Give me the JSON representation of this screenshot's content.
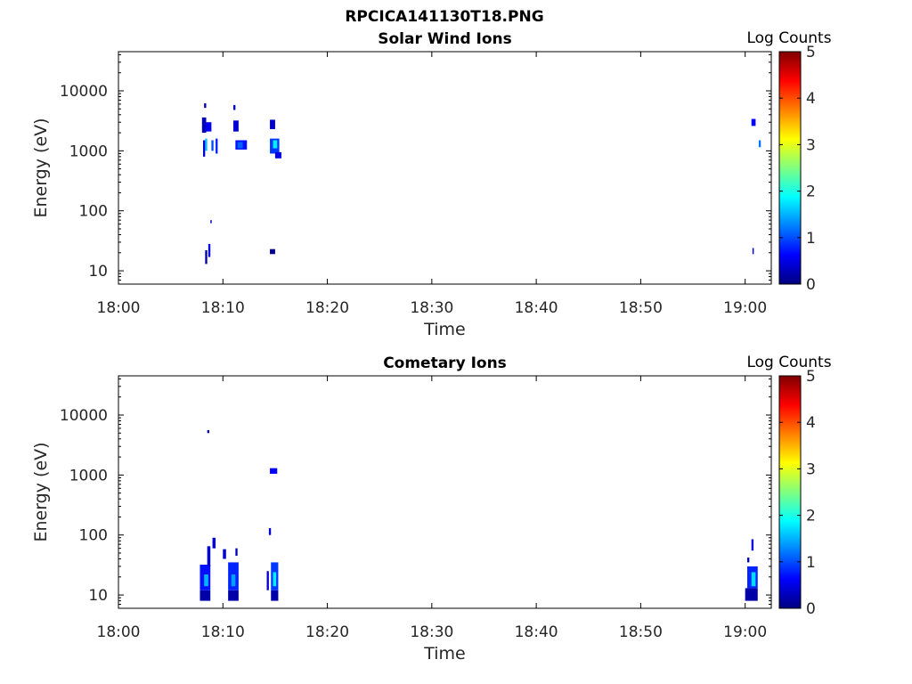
{
  "figure": {
    "title": "RPCICA141130T18.PNG"
  },
  "colorscale": [
    "#00007f",
    "#0000ff",
    "#0080ff",
    "#00ffff",
    "#80ff80",
    "#ffff00",
    "#ff8000",
    "#ff0000",
    "#7f0000"
  ],
  "chart_data": [
    {
      "type": "heatmap",
      "title": "Solar Wind Ions",
      "xlabel": "Time",
      "ylabel": "Energy (eV)",
      "colorbar_label": "Log Counts",
      "colorbar_range": [
        0,
        5
      ],
      "colorbar_ticks": [
        "0",
        "1",
        "2",
        "3",
        "4",
        "5"
      ],
      "x_range_min": [
        0,
        62.5
      ],
      "x_ticks": [
        {
          "t": 0,
          "label": "18:00"
        },
        {
          "t": 10,
          "label": "18:10"
        },
        {
          "t": 20,
          "label": "18:20"
        },
        {
          "t": 30,
          "label": "18:30"
        },
        {
          "t": 40,
          "label": "18:40"
        },
        {
          "t": 50,
          "label": "18:50"
        },
        {
          "t": 60,
          "label": "19:00"
        }
      ],
      "y_scale": "log",
      "y_range": [
        6,
        45000
      ],
      "y_ticks": [
        {
          "v": 10,
          "label": "10"
        },
        {
          "v": 100,
          "label": "100"
        },
        {
          "v": 1000,
          "label": "1000"
        },
        {
          "v": 10000,
          "label": "10000"
        }
      ],
      "cells": [
        [
          8.0,
          8.4,
          2000,
          3600,
          0.3
        ],
        [
          8.4,
          8.9,
          2100,
          3000,
          0.6
        ],
        [
          8.2,
          8.4,
          5200,
          6200,
          0.2
        ],
        [
          8.3,
          8.5,
          1000,
          1600,
          1.6
        ],
        [
          8.1,
          8.3,
          800,
          1500,
          0.4
        ],
        [
          8.9,
          9.1,
          1000,
          1500,
          1.0
        ],
        [
          9.3,
          9.5,
          900,
          1600,
          0.8
        ],
        [
          8.3,
          8.5,
          13,
          22,
          0.2
        ],
        [
          8.6,
          8.8,
          17,
          28,
          0.5
        ],
        [
          8.8,
          8.9,
          62,
          70,
          0.4
        ],
        [
          11.0,
          11.2,
          4800,
          5800,
          0.3
        ],
        [
          11.0,
          11.5,
          2100,
          3200,
          0.4
        ],
        [
          11.2,
          12.3,
          1050,
          1500,
          0.7
        ],
        [
          11.4,
          11.9,
          1100,
          1400,
          1.1
        ],
        [
          14.5,
          15.0,
          2300,
          3300,
          0.4
        ],
        [
          14.5,
          15.4,
          900,
          1600,
          0.9
        ],
        [
          14.8,
          15.2,
          1100,
          1500,
          1.8
        ],
        [
          15.0,
          15.6,
          750,
          950,
          0.5
        ],
        [
          14.5,
          15.0,
          19,
          23,
          0.1
        ],
        [
          60.6,
          61.0,
          2600,
          3400,
          0.6
        ],
        [
          61.3,
          61.5,
          1150,
          1500,
          1.2
        ],
        [
          60.7,
          60.8,
          19,
          24,
          0.5
        ]
      ]
    },
    {
      "type": "heatmap",
      "title": "Cometary Ions",
      "xlabel": "Time",
      "ylabel": "Energy (eV)",
      "colorbar_label": "Log Counts",
      "colorbar_range": [
        0,
        5
      ],
      "colorbar_ticks": [
        "0",
        "1",
        "2",
        "3",
        "4",
        "5"
      ],
      "x_range_min": [
        0,
        62.5
      ],
      "x_ticks": [
        {
          "t": 0,
          "label": "18:00"
        },
        {
          "t": 10,
          "label": "18:10"
        },
        {
          "t": 20,
          "label": "18:20"
        },
        {
          "t": 30,
          "label": "18:30"
        },
        {
          "t": 40,
          "label": "18:40"
        },
        {
          "t": 50,
          "label": "18:50"
        },
        {
          "t": 60,
          "label": "19:00"
        }
      ],
      "y_scale": "log",
      "y_range": [
        6,
        45000
      ],
      "y_ticks": [
        {
          "v": 10,
          "label": "10"
        },
        {
          "v": 100,
          "label": "100"
        },
        {
          "v": 1000,
          "label": "1000"
        },
        {
          "v": 10000,
          "label": "10000"
        }
      ],
      "cells": [
        [
          8.5,
          8.7,
          5000,
          5600,
          0.2
        ],
        [
          7.8,
          8.8,
          8,
          12,
          0.2
        ],
        [
          7.8,
          8.8,
          12,
          32,
          0.7
        ],
        [
          8.2,
          8.6,
          14,
          22,
          1.5
        ],
        [
          8.5,
          8.8,
          30,
          65,
          0.4
        ],
        [
          9.0,
          9.3,
          60,
          90,
          0.4
        ],
        [
          10.0,
          10.3,
          40,
          58,
          0.4
        ],
        [
          10.5,
          11.5,
          8,
          12,
          0.2
        ],
        [
          10.5,
          11.5,
          12,
          35,
          0.8
        ],
        [
          10.8,
          11.2,
          14,
          22,
          1.4
        ],
        [
          11.2,
          11.4,
          45,
          60,
          0.3
        ],
        [
          14.2,
          14.4,
          12,
          25,
          0.4
        ],
        [
          14.6,
          15.3,
          8,
          12,
          0.2
        ],
        [
          14.6,
          15.3,
          12,
          35,
          0.9
        ],
        [
          14.8,
          15.1,
          14,
          24,
          1.8
        ],
        [
          14.4,
          14.6,
          100,
          130,
          0.4
        ],
        [
          14.5,
          15.2,
          1050,
          1300,
          0.6
        ],
        [
          60.0,
          61.2,
          8,
          13,
          0.2
        ],
        [
          60.2,
          61.2,
          13,
          30,
          0.8
        ],
        [
          60.6,
          61.0,
          14,
          24,
          1.7
        ],
        [
          60.6,
          60.8,
          55,
          85,
          0.5
        ],
        [
          60.2,
          60.4,
          35,
          42,
          0.3
        ]
      ]
    }
  ]
}
